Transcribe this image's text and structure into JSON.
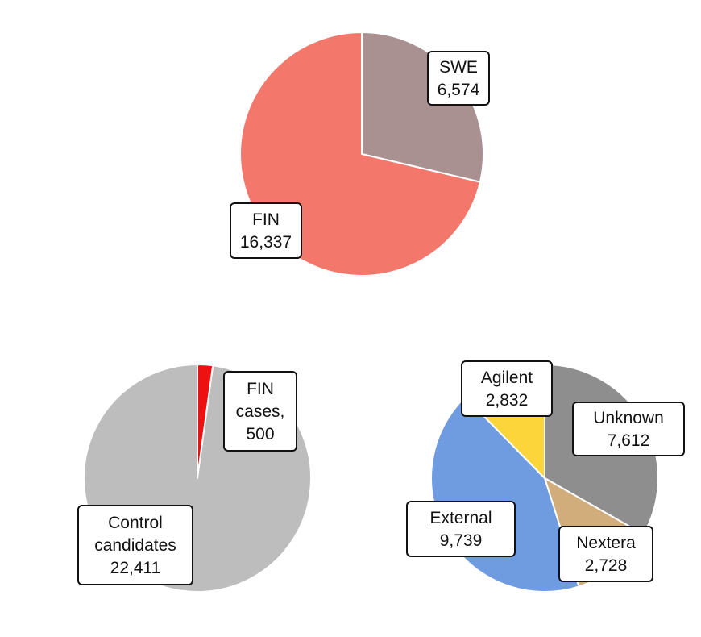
{
  "chart_data": [
    {
      "type": "pie",
      "categories": [
        "SWE",
        "FIN"
      ],
      "values": [
        6574,
        16337
      ],
      "labels": [
        {
          "lines": [
            "SWE",
            "6,574"
          ]
        },
        {
          "lines": [
            "FIN",
            "16,337"
          ]
        }
      ],
      "colors": [
        "#a89190",
        "#f4776c"
      ],
      "start_angle_deg": 0,
      "direction": "clockwise",
      "title": ""
    },
    {
      "type": "pie",
      "categories": [
        "FIN cases",
        "Control candidates"
      ],
      "values": [
        500,
        22411
      ],
      "labels": [
        {
          "lines": [
            "FIN",
            "cases,",
            "500"
          ]
        },
        {
          "lines": [
            "Control",
            "candidates",
            "22,411"
          ]
        }
      ],
      "colors": [
        "#ee1111",
        "#bdbdbd"
      ],
      "start_angle_deg": 0,
      "direction": "clockwise",
      "title": ""
    },
    {
      "type": "pie",
      "categories": [
        "Unknown",
        "Nextera",
        "External",
        "Agilent"
      ],
      "values": [
        7612,
        2728,
        9739,
        2832
      ],
      "labels": [
        {
          "lines": [
            "Unknown",
            "7,612"
          ]
        },
        {
          "lines": [
            "Nextera",
            "2,728"
          ]
        },
        {
          "lines": [
            "External",
            "9,739"
          ]
        },
        {
          "lines": [
            "Agilent",
            "2,832"
          ]
        }
      ],
      "colors": [
        "#8e8e8e",
        "#d2ad7c",
        "#6f9be1",
        "#fcd53a"
      ],
      "start_angle_deg": 0,
      "direction": "clockwise",
      "title": ""
    }
  ]
}
